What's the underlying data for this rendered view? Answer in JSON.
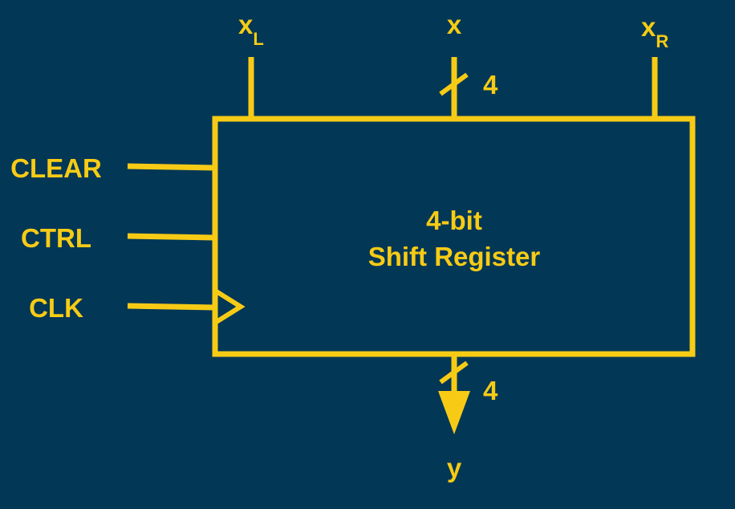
{
  "diagram": {
    "block": {
      "title_line1": "4-bit",
      "title_line2": "Shift Register"
    },
    "inputs_top": {
      "xl_main": "x",
      "xl_sub": "L",
      "x": "x",
      "x_width": "4",
      "xr_main": "x",
      "xr_sub": "R"
    },
    "inputs_left": {
      "clear": "CLEAR",
      "ctrl": "CTRL",
      "clk": "CLK"
    },
    "output": {
      "y": "y",
      "y_width": "4"
    },
    "colors": {
      "background": "#023756",
      "stroke": "#F7CB15"
    }
  }
}
